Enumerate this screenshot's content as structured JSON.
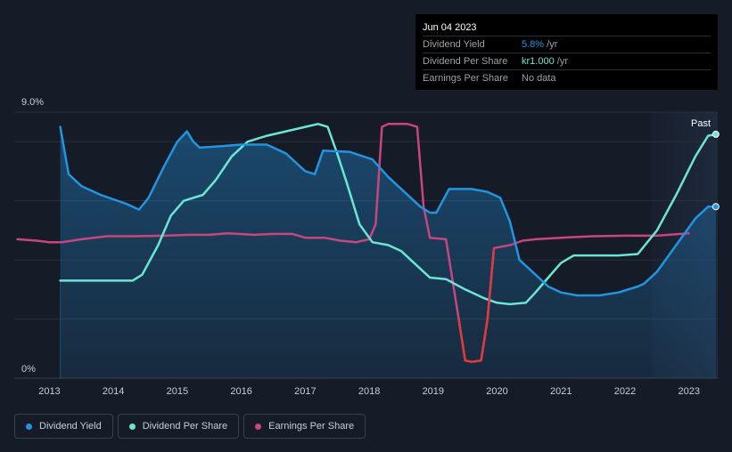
{
  "tooltip": {
    "date": "Jun 04 2023",
    "rows": [
      {
        "label": "Dividend Yield",
        "value": "5.8%",
        "suffix": " /yr",
        "color": "#2394df"
      },
      {
        "label": "Dividend Per Share",
        "value": "kr1.000",
        "suffix": " /yr",
        "color": "#6ce5d2"
      },
      {
        "label": "Earnings Per Share",
        "value": "No data",
        "suffix": "",
        "color": "#9aa1ac"
      }
    ]
  },
  "legend": [
    {
      "label": "Dividend Yield",
      "color": "#2394df"
    },
    {
      "label": "Dividend Per Share",
      "color": "#6ce5d2"
    },
    {
      "label": "Earnings Per Share",
      "color": "#c8467e"
    }
  ],
  "chart_data": {
    "type": "line",
    "ytick_labels": [
      "9.0%",
      "0%"
    ],
    "ylim": [
      0,
      9
    ],
    "xlim": [
      2012.45,
      2023.45
    ],
    "xticks": [
      2013,
      2014,
      2015,
      2016,
      2017,
      2018,
      2019,
      2020,
      2021,
      2022,
      2023
    ],
    "past_label": "Past",
    "past_start": 2022.42,
    "grid": true,
    "legend_position": "bottom-left",
    "series": [
      {
        "name": "Dividend Yield",
        "color": "#2394df",
        "filled": true,
        "points": [
          [
            2013.17,
            8.5
          ],
          [
            2013.3,
            6.9
          ],
          [
            2013.5,
            6.5
          ],
          [
            2013.8,
            6.2
          ],
          [
            2014.2,
            5.9
          ],
          [
            2014.4,
            5.7
          ],
          [
            2014.55,
            6.1
          ],
          [
            2014.8,
            7.2
          ],
          [
            2015.0,
            8.0
          ],
          [
            2015.15,
            8.35
          ],
          [
            2015.25,
            8.0
          ],
          [
            2015.35,
            7.8
          ],
          [
            2015.7,
            7.85
          ],
          [
            2016.0,
            7.9
          ],
          [
            2016.4,
            7.9
          ],
          [
            2016.7,
            7.6
          ],
          [
            2017.0,
            7.0
          ],
          [
            2017.15,
            6.9
          ],
          [
            2017.28,
            7.7
          ],
          [
            2017.7,
            7.65
          ],
          [
            2018.05,
            7.4
          ],
          [
            2018.3,
            6.8
          ],
          [
            2018.55,
            6.3
          ],
          [
            2018.8,
            5.8
          ],
          [
            2018.95,
            5.6
          ],
          [
            2019.05,
            5.6
          ],
          [
            2019.25,
            6.4
          ],
          [
            2019.6,
            6.4
          ],
          [
            2019.85,
            6.3
          ],
          [
            2020.05,
            6.1
          ],
          [
            2020.2,
            5.3
          ],
          [
            2020.35,
            4.0
          ],
          [
            2020.6,
            3.5
          ],
          [
            2020.8,
            3.1
          ],
          [
            2021.0,
            2.9
          ],
          [
            2021.25,
            2.8
          ],
          [
            2021.6,
            2.8
          ],
          [
            2021.9,
            2.9
          ],
          [
            2022.2,
            3.1
          ],
          [
            2022.3,
            3.2
          ],
          [
            2022.5,
            3.6
          ],
          [
            2022.8,
            4.5
          ],
          [
            2023.1,
            5.4
          ],
          [
            2023.3,
            5.8
          ],
          [
            2023.42,
            5.8
          ]
        ]
      },
      {
        "name": "Dividend Per Share",
        "color": "#6ce5d2",
        "filled": false,
        "points": [
          [
            2013.17,
            3.3
          ],
          [
            2013.8,
            3.3
          ],
          [
            2014.3,
            3.3
          ],
          [
            2014.45,
            3.5
          ],
          [
            2014.7,
            4.5
          ],
          [
            2014.9,
            5.5
          ],
          [
            2015.1,
            6.0
          ],
          [
            2015.4,
            6.2
          ],
          [
            2015.6,
            6.7
          ],
          [
            2015.85,
            7.5
          ],
          [
            2016.1,
            8.0
          ],
          [
            2016.4,
            8.2
          ],
          [
            2016.7,
            8.35
          ],
          [
            2017.0,
            8.5
          ],
          [
            2017.2,
            8.6
          ],
          [
            2017.35,
            8.5
          ],
          [
            2017.5,
            7.6
          ],
          [
            2017.65,
            6.6
          ],
          [
            2017.85,
            5.2
          ],
          [
            2018.05,
            4.6
          ],
          [
            2018.3,
            4.5
          ],
          [
            2018.5,
            4.3
          ],
          [
            2018.75,
            3.8
          ],
          [
            2018.95,
            3.4
          ],
          [
            2019.2,
            3.35
          ],
          [
            2019.5,
            3.0
          ],
          [
            2019.8,
            2.7
          ],
          [
            2020.0,
            2.55
          ],
          [
            2020.2,
            2.5
          ],
          [
            2020.45,
            2.55
          ],
          [
            2020.6,
            2.9
          ],
          [
            2020.8,
            3.4
          ],
          [
            2021.0,
            3.9
          ],
          [
            2021.2,
            4.15
          ],
          [
            2021.5,
            4.15
          ],
          [
            2021.9,
            4.15
          ],
          [
            2022.2,
            4.2
          ],
          [
            2022.5,
            5.0
          ],
          [
            2022.8,
            6.2
          ],
          [
            2023.1,
            7.5
          ],
          [
            2023.3,
            8.2
          ],
          [
            2023.42,
            8.25
          ]
        ]
      },
      {
        "name": "Earnings Per Share",
        "color": "#c8467e",
        "filled": false,
        "points": [
          [
            2012.5,
            4.7
          ],
          [
            2012.8,
            4.65
          ],
          [
            2013.0,
            4.6
          ],
          [
            2013.2,
            4.6
          ],
          [
            2013.5,
            4.7
          ],
          [
            2013.9,
            4.8
          ],
          [
            2014.3,
            4.8
          ],
          [
            2014.8,
            4.82
          ],
          [
            2015.2,
            4.85
          ],
          [
            2015.5,
            4.85
          ],
          [
            2015.8,
            4.9
          ],
          [
            2016.2,
            4.85
          ],
          [
            2016.5,
            4.88
          ],
          [
            2016.8,
            4.88
          ],
          [
            2017.0,
            4.75
          ],
          [
            2017.3,
            4.75
          ],
          [
            2017.55,
            4.65
          ],
          [
            2017.8,
            4.6
          ],
          [
            2018.0,
            4.7
          ],
          [
            2018.1,
            5.2
          ],
          [
            2018.2,
            8.5
          ],
          [
            2018.3,
            8.6
          ],
          [
            2018.6,
            8.6
          ],
          [
            2018.75,
            8.5
          ],
          [
            2018.85,
            5.8
          ],
          [
            2018.95,
            4.75
          ],
          [
            2019.2,
            4.7
          ],
          [
            2019.4,
            2.0
          ],
          [
            2019.5,
            0.6
          ],
          [
            2019.6,
            0.55
          ],
          [
            2019.75,
            0.6
          ],
          [
            2019.85,
            2.0
          ],
          [
            2019.95,
            4.4
          ],
          [
            2020.2,
            4.5
          ],
          [
            2020.4,
            4.65
          ],
          [
            2020.6,
            4.7
          ],
          [
            2021.0,
            4.75
          ],
          [
            2021.5,
            4.8
          ],
          [
            2022.0,
            4.82
          ],
          [
            2022.5,
            4.82
          ],
          [
            2023.0,
            4.9
          ]
        ]
      }
    ]
  }
}
